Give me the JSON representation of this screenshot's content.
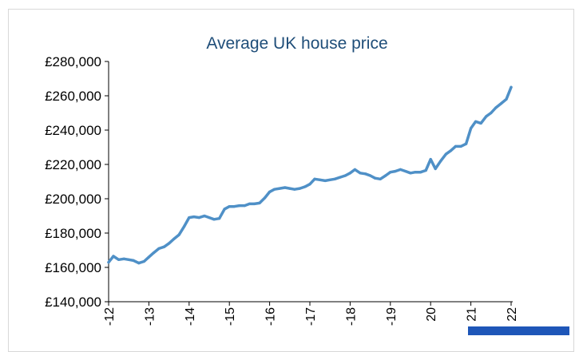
{
  "colors": {
    "title": "#1f4e79",
    "series": "#4f90c7",
    "axis": "#000000",
    "accent_bar": "#1e56b8"
  },
  "chart_data": {
    "type": "line",
    "title": "Average UK house price",
    "xlabel": "",
    "ylabel": "",
    "ylim": [
      140000,
      280000
    ],
    "xlim": [
      2012,
      2022
    ],
    "grid": false,
    "y_ticks": [
      {
        "value": 140000,
        "label": "£140,000"
      },
      {
        "value": 160000,
        "label": "£160,000"
      },
      {
        "value": 180000,
        "label": "£180,000"
      },
      {
        "value": 200000,
        "label": "£200,000"
      },
      {
        "value": 220000,
        "label": "£220,000"
      },
      {
        "value": 240000,
        "label": "£240,000"
      },
      {
        "value": 260000,
        "label": "£260,000"
      },
      {
        "value": 280000,
        "label": "£280,000"
      }
    ],
    "x_ticks": [
      {
        "value": 2012,
        "label": "-12"
      },
      {
        "value": 2013,
        "label": "-13"
      },
      {
        "value": 2014,
        "label": "-14"
      },
      {
        "value": 2015,
        "label": "-15"
      },
      {
        "value": 2016,
        "label": "-16"
      },
      {
        "value": 2017,
        "label": "-17"
      },
      {
        "value": 2018,
        "label": "-18"
      },
      {
        "value": 2019,
        "label": "-19"
      },
      {
        "value": 2020,
        "label": "20"
      },
      {
        "value": 2021,
        "label": "21"
      },
      {
        "value": 2022,
        "label": "22"
      }
    ],
    "series": [
      {
        "name": "Average UK house price",
        "x": [
          2012.0,
          2012.12,
          2012.25,
          2012.38,
          2012.5,
          2012.62,
          2012.75,
          2012.88,
          2013.0,
          2013.12,
          2013.25,
          2013.38,
          2013.5,
          2013.62,
          2013.75,
          2013.88,
          2014.0,
          2014.12,
          2014.25,
          2014.38,
          2014.5,
          2014.62,
          2014.75,
          2014.88,
          2015.0,
          2015.12,
          2015.25,
          2015.38,
          2015.5,
          2015.62,
          2015.75,
          2015.88,
          2016.0,
          2016.12,
          2016.25,
          2016.38,
          2016.5,
          2016.62,
          2016.75,
          2016.88,
          2017.0,
          2017.12,
          2017.25,
          2017.38,
          2017.5,
          2017.62,
          2017.75,
          2017.88,
          2018.0,
          2018.12,
          2018.25,
          2018.38,
          2018.5,
          2018.62,
          2018.75,
          2018.88,
          2019.0,
          2019.12,
          2019.25,
          2019.38,
          2019.5,
          2019.62,
          2019.75,
          2019.88,
          2020.0,
          2020.12,
          2020.25,
          2020.38,
          2020.5,
          2020.62,
          2020.75,
          2020.88,
          2021.0,
          2021.12,
          2021.25,
          2021.38,
          2021.5,
          2021.62,
          2021.75,
          2021.88,
          2022.0
        ],
        "values": [
          163000,
          166500,
          164500,
          165000,
          164500,
          164000,
          162500,
          163500,
          166000,
          168500,
          171000,
          172000,
          174000,
          176500,
          179000,
          184000,
          189000,
          189500,
          189000,
          190000,
          189000,
          188000,
          188500,
          194000,
          195500,
          195500,
          196000,
          196000,
          197000,
          197000,
          197500,
          200500,
          204000,
          205500,
          206000,
          206500,
          206000,
          205500,
          206000,
          207000,
          208500,
          211500,
          211000,
          210500,
          211000,
          211500,
          212500,
          213500,
          215000,
          217000,
          215000,
          214500,
          213500,
          212000,
          211500,
          213500,
          215500,
          216000,
          217000,
          216000,
          215000,
          215500,
          215500,
          216500,
          223000,
          217500,
          222000,
          226000,
          228000,
          230500,
          230500,
          232000,
          241000,
          245000,
          244000,
          248000,
          250000,
          253000,
          255500,
          258000,
          265000
        ]
      }
    ]
  }
}
